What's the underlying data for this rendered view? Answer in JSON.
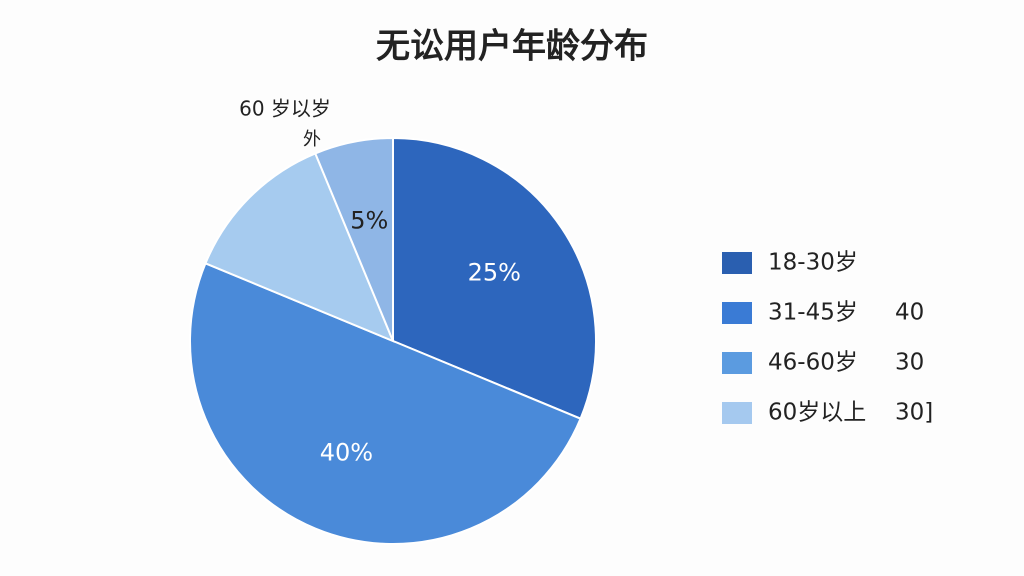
{
  "chart_data": {
    "type": "pie",
    "title": "无讼用户年龄分布",
    "categories": [
      "18-30岁",
      "31-45岁",
      "46-60岁",
      "60岁以上"
    ],
    "values": [
      25,
      40,
      10,
      5
    ],
    "value_labels": [
      "25%",
      "40%",
      null,
      "5%"
    ],
    "colors": [
      "#2d66bd",
      "#4a8ad9",
      "#a6cbef",
      "#8fb6e6"
    ],
    "legend_colors": [
      "#2a5fb0",
      "#3a7bd5",
      "#5b9be0",
      "#a5c9ef"
    ],
    "legend_notes": [
      null,
      "40",
      "30",
      "30]"
    ],
    "annotations": [
      "60 岁以岁",
      "外"
    ],
    "legend": "right"
  }
}
